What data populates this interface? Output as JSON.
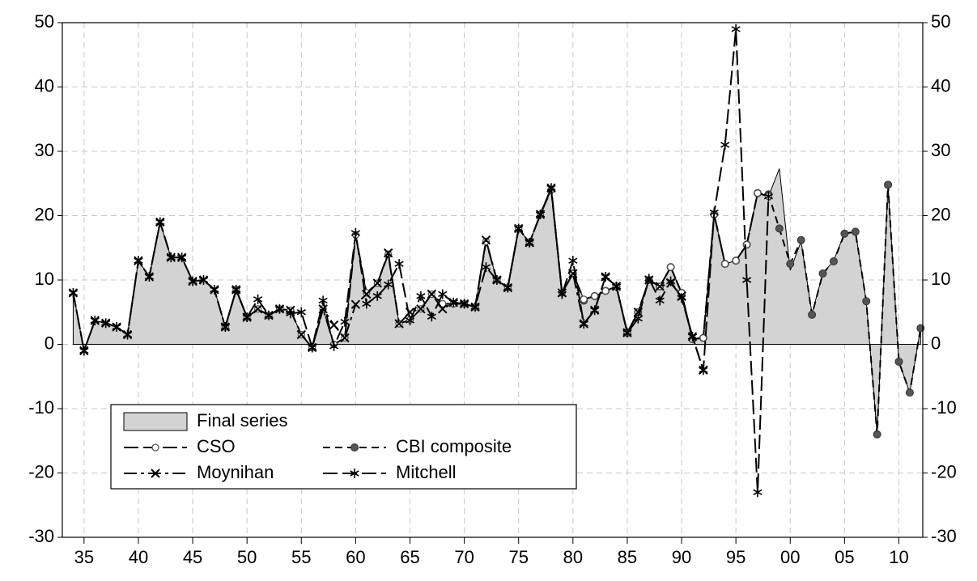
{
  "chart_data": {
    "type": "line",
    "x": [
      1934,
      1935,
      1936,
      1937,
      1938,
      1939,
      1940,
      1941,
      1942,
      1943,
      1944,
      1945,
      1946,
      1947,
      1948,
      1949,
      1950,
      1951,
      1952,
      1953,
      1954,
      1955,
      1956,
      1957,
      1958,
      1959,
      1960,
      1961,
      1962,
      1963,
      1964,
      1965,
      1966,
      1967,
      1968,
      1969,
      1970,
      1971,
      1972,
      1973,
      1974,
      1975,
      1976,
      1977,
      1978,
      1979,
      1980,
      1981,
      1982,
      1983,
      1984,
      1985,
      1986,
      1987,
      1988,
      1989,
      1990,
      1991,
      1992,
      1993,
      1994,
      1995,
      1996,
      1997,
      1998,
      1999,
      2000,
      2001,
      2002,
      2003,
      2004,
      2005,
      2006,
      2007,
      2008,
      2009,
      2010,
      2011,
      2012
    ],
    "xlim": [
      1933,
      2012.2
    ],
    "xticks": [
      {
        "value": 1935,
        "label": "35"
      },
      {
        "value": 1940,
        "label": "40"
      },
      {
        "value": 1945,
        "label": "45"
      },
      {
        "value": 1950,
        "label": "50"
      },
      {
        "value": 1955,
        "label": "55"
      },
      {
        "value": 1960,
        "label": "60"
      },
      {
        "value": 1965,
        "label": "65"
      },
      {
        "value": 1970,
        "label": "70"
      },
      {
        "value": 1975,
        "label": "75"
      },
      {
        "value": 1980,
        "label": "80"
      },
      {
        "value": 1985,
        "label": "85"
      },
      {
        "value": 1990,
        "label": "90"
      },
      {
        "value": 1995,
        "label": "95"
      },
      {
        "value": 2000,
        "label": "00"
      },
      {
        "value": 2005,
        "label": "05"
      },
      {
        "value": 2010,
        "label": "10"
      }
    ],
    "ylim": [
      -30,
      50
    ],
    "yticks": [
      -30,
      -20,
      -10,
      0,
      10,
      20,
      30,
      40,
      50
    ],
    "grid": true,
    "legend": "lower left",
    "series": [
      {
        "name": "Final series",
        "color": "#d3d3d3",
        "kind": "area",
        "values": [
          8,
          -1,
          3.7,
          3.3,
          2.7,
          1.5,
          13,
          10.5,
          19,
          13.5,
          13.5,
          9.8,
          10,
          8.5,
          2.7,
          8.5,
          4.2,
          5.5,
          4.5,
          5.5,
          5.3,
          1.5,
          -0.5,
          5.5,
          0,
          1,
          17,
          8,
          9.5,
          14,
          3.2,
          3.8,
          5.5,
          7.8,
          6.3,
          6.3,
          6.3,
          5.8,
          16,
          10,
          8.8,
          18,
          15.8,
          20.2,
          24,
          8,
          11,
          7,
          7.5,
          8.3,
          9,
          1.8,
          5,
          10,
          9,
          12,
          8,
          0.8,
          1,
          20.2,
          12.5,
          13,
          15.5,
          23.5,
          23,
          27.3,
          11.5,
          16,
          4.8,
          11,
          13,
          17.3,
          17.5,
          6.7,
          -14,
          24.8,
          -2.7,
          -7.5,
          2.5
        ]
      },
      {
        "name": "CBI composite",
        "color": "#000000",
        "kind": "line",
        "line": "dash",
        "marker": "dot",
        "values": [
          null,
          null,
          null,
          null,
          null,
          null,
          null,
          null,
          null,
          null,
          null,
          null,
          null,
          null,
          null,
          null,
          null,
          null,
          null,
          null,
          null,
          null,
          null,
          null,
          null,
          null,
          null,
          null,
          null,
          null,
          null,
          null,
          null,
          null,
          null,
          null,
          null,
          null,
          null,
          null,
          null,
          null,
          null,
          null,
          null,
          null,
          11,
          6.8,
          7.5,
          8.3,
          9,
          1.8,
          5,
          10,
          9,
          12,
          8,
          0.8,
          1,
          20.2,
          12.5,
          13,
          15.5,
          23.5,
          23.3,
          18,
          12.5,
          16.2,
          4.6,
          11,
          12.9,
          17.2,
          17.5,
          6.7,
          -14,
          24.8,
          -2.7,
          -7.5,
          2.5
        ]
      },
      {
        "name": "CSO",
        "color": "#000000",
        "kind": "line",
        "line": "longdash",
        "marker": "circle",
        "values": [
          null,
          null,
          null,
          null,
          null,
          null,
          null,
          null,
          null,
          null,
          null,
          null,
          null,
          null,
          2.7,
          8.5,
          4.2,
          5.5,
          4.5,
          5.5,
          5.3,
          1.5,
          -0.5,
          5.5,
          0,
          1,
          17,
          8,
          9.5,
          14,
          3.2,
          3.8,
          5.5,
          7.8,
          6.3,
          6.3,
          6.3,
          5.8,
          16,
          10,
          8.8,
          18,
          15.8,
          20.2,
          24,
          8,
          11,
          7,
          7.5,
          8.3,
          9,
          1.8,
          5,
          10,
          9,
          12,
          8,
          0.8,
          1,
          20.2,
          12.5,
          13,
          15.5,
          23.5,
          23,
          null,
          null,
          null,
          null,
          null,
          null,
          null,
          null,
          null,
          null,
          null,
          null,
          null,
          null
        ]
      },
      {
        "name": "Mitchell",
        "color": "#000000",
        "kind": "line",
        "line": "longdash",
        "marker": "star",
        "values": [
          8,
          -1,
          3.7,
          3.3,
          2.7,
          1.5,
          13,
          10.5,
          19,
          13.5,
          13.5,
          9.8,
          10,
          8.5,
          2.7,
          8.5,
          4.2,
          7,
          4.5,
          5.5,
          4.8,
          5,
          -0.5,
          6.8,
          -0.3,
          3.5,
          17.3,
          6.3,
          7.5,
          9.3,
          12.5,
          3.7,
          7.5,
          4.3,
          7.8,
          6.5,
          6.3,
          5.8,
          12,
          10,
          8.8,
          18,
          15.8,
          20.2,
          24.3,
          7.8,
          13,
          3.2,
          5.3,
          10.5,
          9,
          1.8,
          4,
          10.2,
          6.8,
          9.8,
          7.2,
          1.2,
          -4,
          20.5,
          31,
          49,
          10,
          -23,
          23,
          null,
          null,
          null,
          null,
          null,
          null,
          null,
          null,
          null,
          null,
          null,
          null,
          null,
          null
        ]
      },
      {
        "name": "Moynihan",
        "color": "#000000",
        "kind": "line",
        "line": "dashdot",
        "marker": "x",
        "values": [
          8,
          -1,
          3.7,
          3.3,
          2.7,
          1.5,
          13,
          10.5,
          19,
          13.5,
          13.5,
          9.8,
          10,
          8.5,
          2.7,
          8.5,
          4.2,
          5.5,
          4.5,
          5.5,
          5.3,
          1.5,
          -0.5,
          5.5,
          3,
          1,
          6.2,
          7.8,
          9.5,
          14.2,
          3.2,
          5,
          5.5,
          7.8,
          5.5,
          6.5,
          6.3,
          5.8,
          16.2,
          10,
          8.8,
          18,
          15.8,
          20.2,
          24.3,
          8,
          11,
          3.2,
          5.3,
          10.5,
          9,
          1.8,
          5,
          10,
          9,
          9.5,
          7.5,
          1.2,
          -4,
          null,
          null,
          null,
          null,
          null,
          null,
          null,
          null,
          null,
          null,
          null,
          null,
          null,
          null,
          null,
          null,
          null,
          null,
          null,
          null
        ]
      }
    ]
  }
}
